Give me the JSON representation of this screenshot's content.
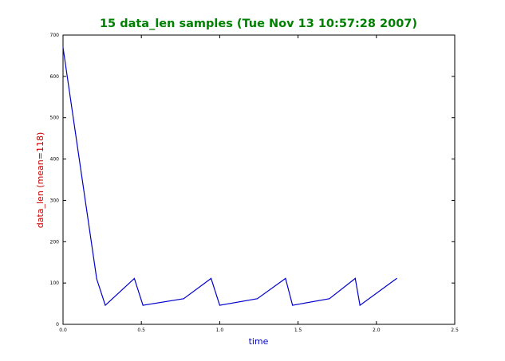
{
  "colors": {
    "title": "#008000",
    "xlabel": "#0000cc",
    "ylabel": "#cc0000",
    "series": "#0000cc",
    "axes": "#000000"
  },
  "chart_data": {
    "type": "line",
    "title": "15 data_len samples (Tue Nov 13 10:57:28 2007)",
    "xlabel": "time",
    "ylabel": "data_len (mean=118)",
    "xlim": [
      0,
      2.5
    ],
    "ylim": [
      0,
      700
    ],
    "xticks": [
      "0.0",
      "0.5",
      "1.0",
      "1.5",
      "2.0",
      "2.5"
    ],
    "yticks": [
      "0",
      "100",
      "200",
      "300",
      "400",
      "500",
      "600",
      "700"
    ],
    "grid": false,
    "series": [
      {
        "x": [
          0.0,
          0.215,
          0.27,
          0.455,
          0.51,
          0.77,
          0.945,
          1.0,
          1.24,
          1.42,
          1.465,
          1.7,
          1.865,
          1.895,
          2.13
        ],
        "y": [
          670,
          110,
          46,
          111,
          46,
          62,
          111,
          46,
          62,
          111,
          46,
          62,
          111,
          46,
          111
        ]
      }
    ]
  }
}
